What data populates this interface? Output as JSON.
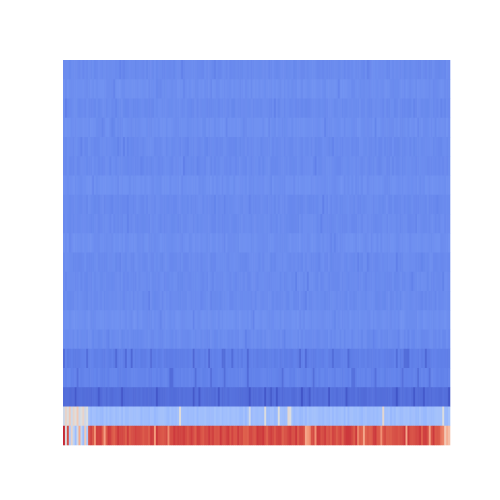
{
  "chart_data": {
    "type": "heatmap",
    "title": "",
    "xlabel": "",
    "ylabel": "",
    "axes_visible": false,
    "colormap": "coolwarm",
    "value_range": [
      0,
      1
    ],
    "n_rows": 20,
    "n_cols": 200,
    "row_profile": [
      0.15,
      0.16,
      0.15,
      0.16,
      0.15,
      0.15,
      0.16,
      0.15,
      0.15,
      0.16,
      0.15,
      0.15,
      0.15,
      0.16,
      0.15,
      0.12,
      0.13,
      0.08,
      0.3,
      0.88
    ],
    "left_columns_note_values": {
      "bottom_row_left": [
        0.95,
        0.5,
        0.9,
        0.35,
        0.55,
        0.4,
        0.3,
        0.45,
        0.7,
        0.4,
        0.3,
        0.6,
        0.35
      ],
      "second_row_left": [
        0.45,
        0.55,
        0.5,
        0.6,
        0.45,
        0.55,
        0.5,
        0.6,
        0.45,
        0.5,
        0.55,
        0.45,
        0.5
      ]
    },
    "background": "#ffffff"
  }
}
